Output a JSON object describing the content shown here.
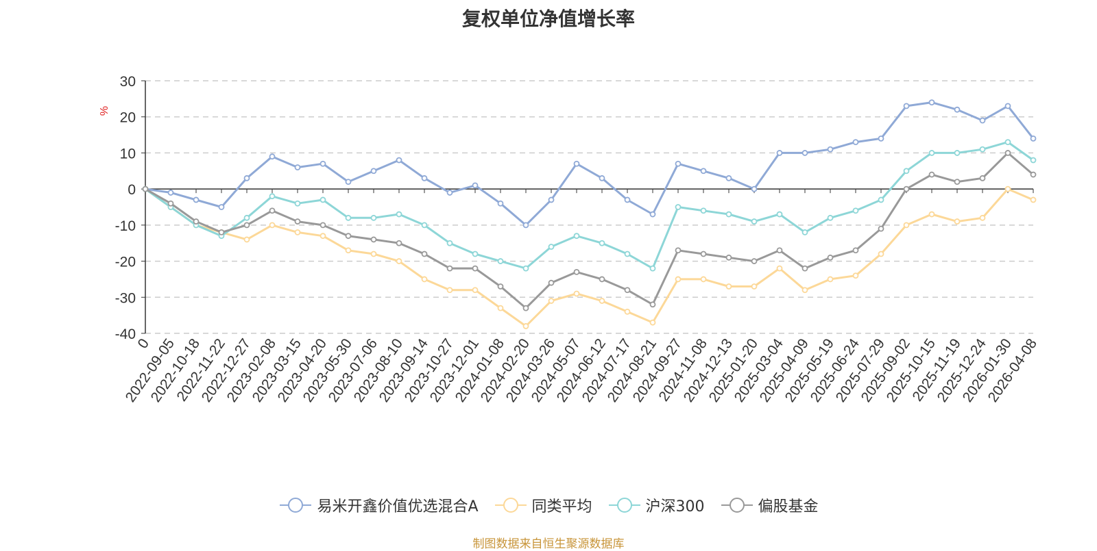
{
  "chart_data": {
    "type": "line",
    "title": "复权单位净值增长率",
    "ylabel": "%",
    "ylim": [
      -40,
      30
    ],
    "yticks": [
      30,
      20,
      10,
      0,
      -10,
      -20,
      -30,
      -40
    ],
    "grid": true,
    "legend_position": "bottom",
    "x": [
      "0",
      "2022-09-05",
      "2022-10-18",
      "2022-11-22",
      "2022-12-27",
      "2023-02-08",
      "2023-03-15",
      "2023-04-20",
      "2023-05-30",
      "2023-07-06",
      "2023-08-10",
      "2023-09-14",
      "2023-10-27",
      "2023-12-01",
      "2024-01-08",
      "2024-02-20",
      "2024-03-26",
      "2024-05-07",
      "2024-06-12",
      "2024-07-17",
      "2024-08-21",
      "2024-09-27",
      "2024-11-08",
      "2024-12-13",
      "2025-01-20",
      "2025-03-04",
      "2025-04-09",
      "2025-05-19",
      "2025-06-24",
      "2025-07-29",
      "2025-09-02",
      "2025-10-15",
      "2025-11-19",
      "2025-12-24",
      "2026-01-30",
      "2026-04-08"
    ],
    "series": [
      {
        "name": "易米开鑫价值优选混合A",
        "color": "#8fa9d6",
        "values": [
          0,
          -1,
          -3,
          -5,
          3,
          9,
          6,
          7,
          2,
          5,
          8,
          3,
          -1,
          1,
          -4,
          -10,
          -3,
          7,
          3,
          -3,
          -7,
          7,
          5,
          3,
          0,
          10,
          10,
          11,
          13,
          14,
          23,
          24,
          22,
          19,
          23,
          14
        ]
      },
      {
        "name": "同类平均",
        "color": "#fcd898",
        "values": [
          0,
          -5,
          -10,
          -12,
          -14,
          -10,
          -12,
          -13,
          -17,
          -18,
          -20,
          -25,
          -28,
          -28,
          -33,
          -38,
          -31,
          -29,
          -31,
          -34,
          -37,
          -25,
          -25,
          -27,
          -27,
          -22,
          -28,
          -25,
          -24,
          -18,
          -10,
          -7,
          -9,
          -8,
          0,
          -3
        ]
      },
      {
        "name": "沪深300",
        "color": "#8dd6d7",
        "values": [
          0,
          -5,
          -10,
          -13,
          -8,
          -2,
          -4,
          -3,
          -8,
          -8,
          -7,
          -10,
          -15,
          -18,
          -20,
          -22,
          -16,
          -13,
          -15,
          -18,
          -22,
          -5,
          -6,
          -7,
          -9,
          -7,
          -12,
          -8,
          -6,
          -3,
          5,
          10,
          10,
          11,
          13,
          8
        ]
      },
      {
        "name": "偏股基金",
        "color": "#999999",
        "values": [
          0,
          -4,
          -9,
          -12,
          -10,
          -6,
          -9,
          -10,
          -13,
          -14,
          -15,
          -18,
          -22,
          -22,
          -27,
          -33,
          -26,
          -23,
          -25,
          -28,
          -32,
          -17,
          -18,
          -19,
          -20,
          -17,
          -22,
          -19,
          -17,
          -11,
          0,
          4,
          2,
          3,
          10,
          4
        ]
      }
    ]
  },
  "source_text": "制图数据来自恒生聚源数据库"
}
